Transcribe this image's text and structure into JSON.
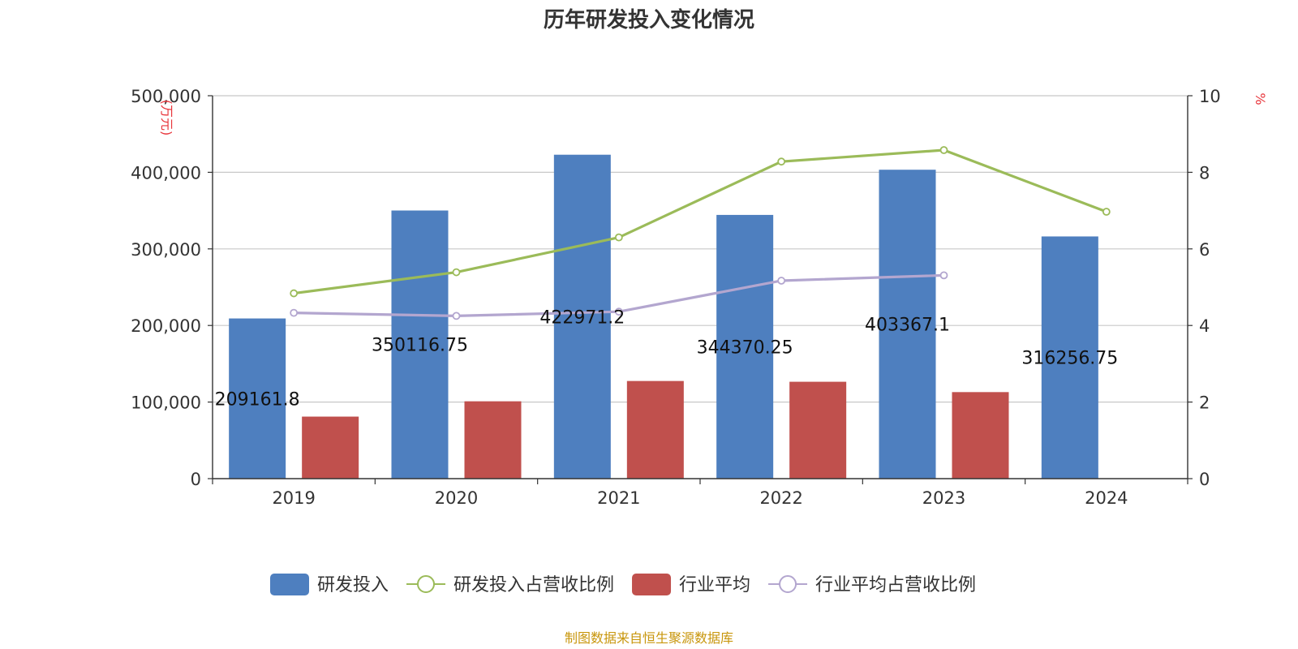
{
  "chart_data": {
    "type": "bar",
    "title": "历年研发投入变化情况",
    "categories": [
      "2019",
      "2020",
      "2021",
      "2022",
      "2023",
      "2024"
    ],
    "y_left": {
      "unit": "(万元)",
      "ylim": [
        0,
        500000
      ],
      "ticks": [
        0,
        100000,
        200000,
        300000,
        400000,
        500000
      ],
      "tick_labels": [
        "0",
        "100,000",
        "200,000",
        "300,000",
        "400,000",
        "500,000"
      ]
    },
    "y_right": {
      "unit": "%",
      "ylim": [
        0,
        10
      ],
      "ticks": [
        0,
        2,
        4,
        6,
        8,
        10
      ],
      "tick_labels": [
        "0",
        "2",
        "4",
        "6",
        "8",
        "10"
      ]
    },
    "grid": true,
    "legend_position": "bottom",
    "series": [
      {
        "name": "研发投入",
        "type": "bar",
        "axis": "left",
        "color": "#4e7fbf",
        "values": [
          209161.8,
          350116.75,
          422971.2,
          344370.25,
          403367.1,
          316256.75
        ],
        "labels": [
          "209161.8",
          "350116.75",
          "422971.2",
          "344370.25",
          "403367.1",
          "316256.75"
        ]
      },
      {
        "name": "研发投入占营收比例",
        "type": "line",
        "axis": "right",
        "color": "#9bbb59",
        "values": [
          4.84,
          5.39,
          6.3,
          8.28,
          8.58,
          6.97
        ]
      },
      {
        "name": "行业平均",
        "type": "bar",
        "axis": "left",
        "color": "#c0504d",
        "values": [
          81000,
          101000,
          127500,
          126500,
          113000,
          null
        ]
      },
      {
        "name": "行业平均占营收比例",
        "type": "line",
        "axis": "right",
        "color": "#b3a6cf",
        "values": [
          4.33,
          4.25,
          4.36,
          5.17,
          5.31,
          null
        ]
      }
    ],
    "source": "制图数据来自恒生聚源数据库"
  }
}
